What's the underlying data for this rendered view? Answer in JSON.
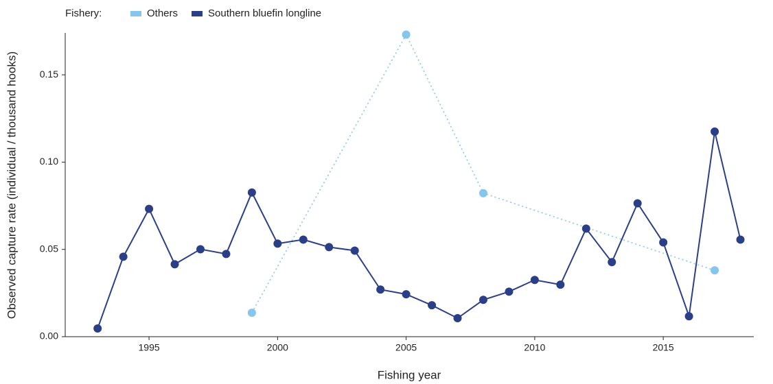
{
  "chart_data": {
    "type": "line",
    "x_label": "Fishing year",
    "y_label": "Observed capture rate (individual / thousand hooks)",
    "legend_title": "Fishery:",
    "legend_position": "top-left",
    "grid": false,
    "xlim": [
      1991.74,
      2018.52
    ],
    "xticks": [
      1995,
      2000,
      2005,
      2010,
      2015
    ],
    "ylim": [
      0,
      0.174
    ],
    "yticks": [
      {
        "value": 0,
        "label": "0.00"
      },
      0.05,
      {
        "value": 0.1,
        "label": "0.10"
      },
      0.15
    ],
    "series": [
      {
        "name": "Others",
        "color": "#86c5ec",
        "dashed": true,
        "x": [
          1999,
          2005,
          2008,
          2017
        ],
        "values": [
          0.0137,
          0.173,
          0.0822,
          0.038
        ]
      },
      {
        "name": "Southern bluefin longline",
        "color": "#2b3f87",
        "dashed": false,
        "x": [
          1993,
          1994,
          1995,
          1996,
          1997,
          1998,
          1999,
          2000,
          2001,
          2002,
          2003,
          2004,
          2005,
          2006,
          2007,
          2008,
          2009,
          2010,
          2011,
          2012,
          2013,
          2014,
          2015,
          2016,
          2017,
          2018
        ],
        "values": [
          0.0047,
          0.0458,
          0.0732,
          0.0415,
          0.0501,
          0.0474,
          0.0826,
          0.0533,
          0.0556,
          0.0513,
          0.0493,
          0.027,
          0.0243,
          0.018,
          0.0106,
          0.0211,
          0.0258,
          0.0325,
          0.0298,
          0.0619,
          0.0427,
          0.0764,
          0.054,
          0.0117,
          0.1175,
          0.0556
        ]
      }
    ]
  }
}
